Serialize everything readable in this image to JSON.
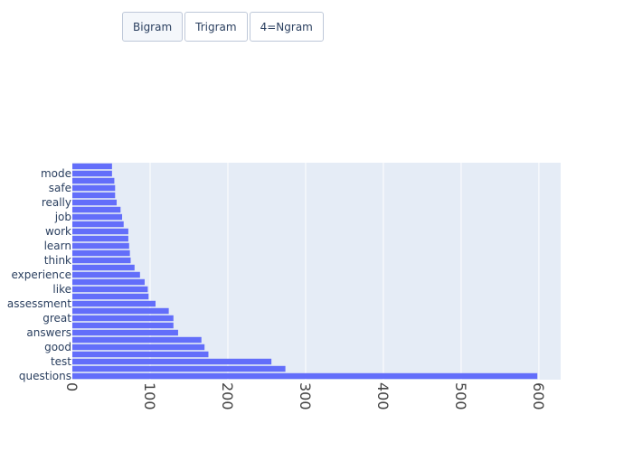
{
  "buttons": {
    "bigram": "Bigram",
    "trigram": "Trigram",
    "ngram4": "4=Ngram",
    "active": "bigram"
  },
  "colors": {
    "bar": "#636efa",
    "plot_bg": "#e5ecf6",
    "grid": "#ffffff"
  },
  "chart_data": {
    "type": "bar",
    "orientation": "horizontal",
    "categories": [
      "questions",
      "",
      "test",
      "",
      "good",
      "",
      "answers",
      "",
      "great",
      "",
      "assessment",
      "",
      "like",
      "",
      "experience",
      "",
      "think",
      "",
      "learn",
      "",
      "work",
      "",
      "job",
      "",
      "really",
      "",
      "safe",
      "",
      "mode",
      ""
    ],
    "values": [
      598,
      274,
      256,
      175,
      170,
      166,
      136,
      130,
      130,
      124,
      107,
      98,
      97,
      93,
      87,
      80,
      75,
      74,
      73,
      72,
      72,
      66,
      64,
      62,
      57,
      55,
      55,
      54,
      51,
      51
    ],
    "xlim": [
      0,
      628
    ],
    "x_ticks": [
      0,
      100,
      200,
      300,
      400,
      500,
      600
    ],
    "grid": true
  }
}
